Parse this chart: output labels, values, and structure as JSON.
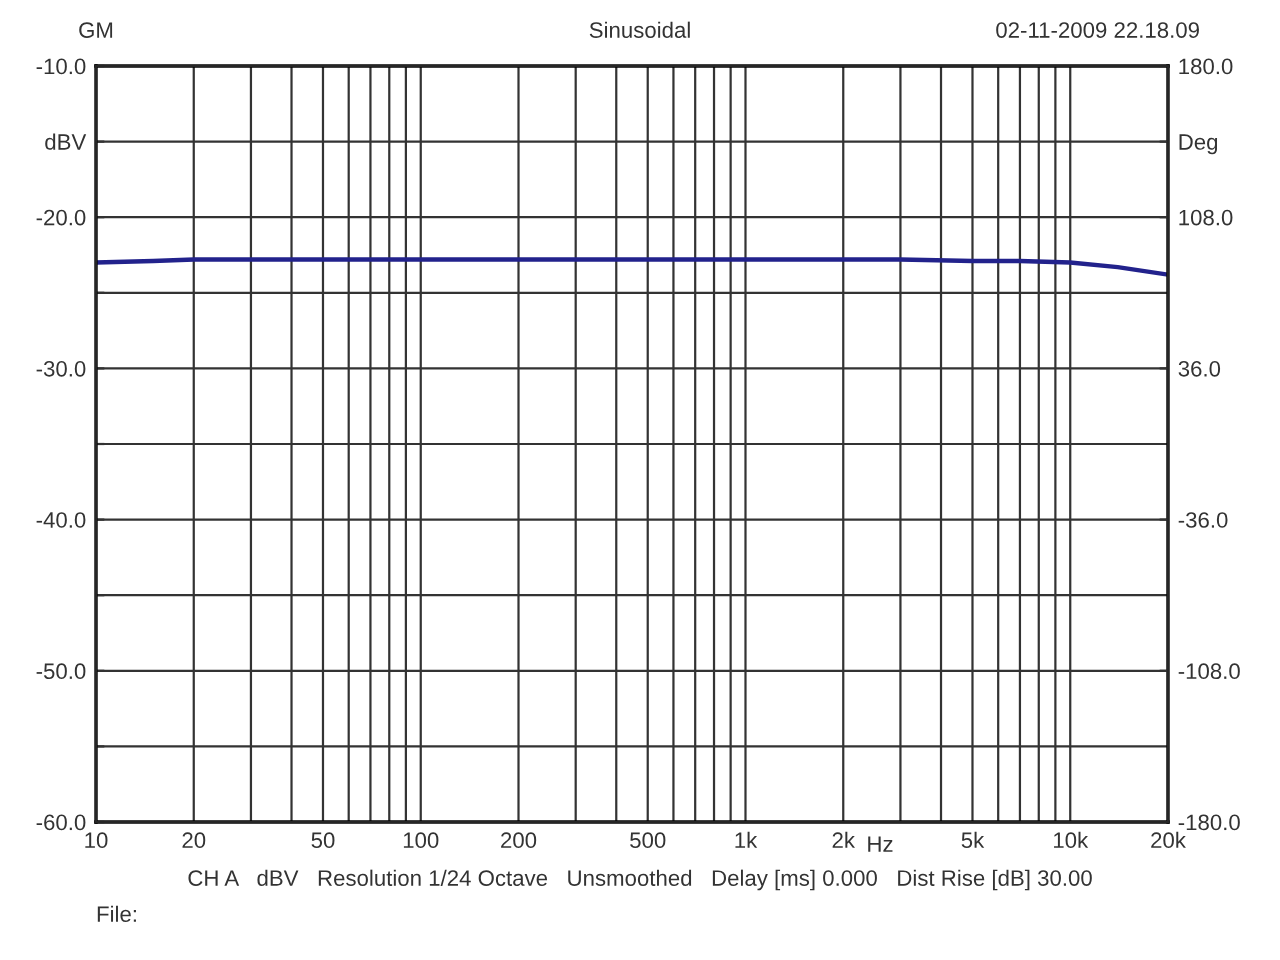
{
  "chart_data": {
    "type": "line",
    "title": "Sinusoidal",
    "xlabel": "Hz",
    "annotations": [
      "GM",
      "02-11-2009 22.18.09",
      "CH A   dBV   Resolution 1/24 Octave   Unsmoothed   Delay [ms] 0.000   Dist Rise [dB] 30.00",
      "File:"
    ],
    "log": "x",
    "grid": true,
    "marker": "none",
    "line_style": "solid",
    "xlim": [
      10,
      20000
    ],
    "xticks": [
      10,
      20,
      {
        "value": 30,
        "label": null
      },
      {
        "value": 40,
        "label": null
      },
      50,
      {
        "value": 60,
        "label": null
      },
      {
        "value": 70,
        "label": null
      },
      {
        "value": 80,
        "label": null
      },
      {
        "value": 90,
        "label": null
      },
      100,
      200,
      {
        "value": 300,
        "label": null
      },
      {
        "value": 400,
        "label": null
      },
      500,
      {
        "value": 600,
        "label": null
      },
      {
        "value": 700,
        "label": null
      },
      {
        "value": 800,
        "label": null
      },
      {
        "value": 900,
        "label": null
      },
      {
        "value": 1000,
        "label": "1k"
      },
      {
        "value": 2000,
        "label": "2k"
      },
      {
        "value": 3000,
        "label": null
      },
      {
        "value": 4000,
        "label": null
      },
      {
        "value": 5000,
        "label": "5k"
      },
      {
        "value": 6000,
        "label": null
      },
      {
        "value": 7000,
        "label": null
      },
      {
        "value": 8000,
        "label": null
      },
      {
        "value": 9000,
        "label": null
      },
      {
        "value": 10000,
        "label": "10k"
      },
      {
        "value": 20000,
        "label": "20k"
      }
    ],
    "ylim": [
      -60,
      -10
    ],
    "yticks": [
      {
        "value": -10,
        "label": "-10.0"
      },
      {
        "value": -15,
        "label": "dBV"
      },
      {
        "value": -20,
        "label": "-20.0"
      },
      {
        "value": -25,
        "label": null
      },
      {
        "value": -30,
        "label": "-30.0"
      },
      {
        "value": -35,
        "label": null
      },
      {
        "value": -40,
        "label": "-40.0"
      },
      {
        "value": -45,
        "label": null
      },
      {
        "value": -50,
        "label": "-50.0"
      },
      {
        "value": -55,
        "label": null
      },
      {
        "value": -60,
        "label": "-60.0"
      }
    ],
    "y2lim": [
      -180,
      180
    ],
    "y2ticks": [
      {
        "value": 180,
        "label": "180.0"
      },
      {
        "value": 144,
        "label": "Deg"
      },
      {
        "value": 108,
        "label": "108.0"
      },
      {
        "value": 36,
        "label": "36.0"
      },
      {
        "value": -36,
        "label": "-36.0"
      },
      {
        "value": -108,
        "label": "-108.0"
      },
      {
        "value": -180,
        "label": "-180.0"
      }
    ],
    "series": [
      {
        "color": "#22228c",
        "x": [
          10,
          15,
          20,
          50,
          100,
          1000,
          2000,
          3000,
          5000,
          7000,
          10000,
          14000,
          20000
        ],
        "values": [
          -23.0,
          -22.9,
          -22.8,
          -22.8,
          -22.8,
          -22.8,
          -22.8,
          -22.8,
          -22.9,
          -22.9,
          -23.0,
          -23.3,
          -23.8
        ]
      }
    ]
  }
}
